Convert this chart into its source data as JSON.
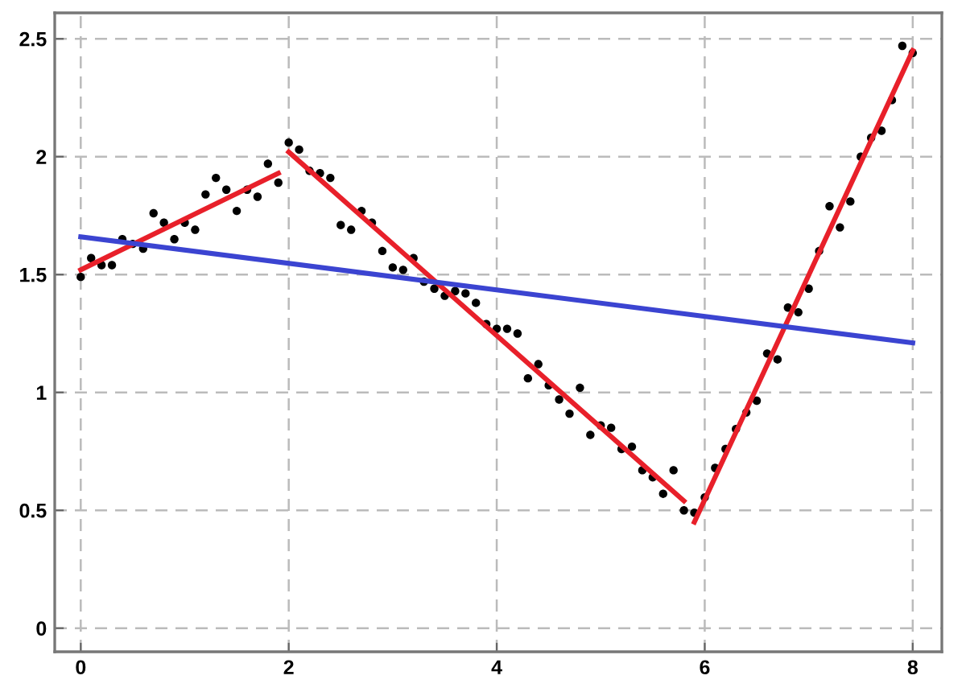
{
  "chart_data": {
    "type": "scatter",
    "xlim": [
      -0.25,
      8.28
    ],
    "ylim": [
      -0.1,
      2.61
    ],
    "xticks": [
      0,
      2,
      4,
      6,
      8
    ],
    "yticks": [
      0,
      0.5,
      1,
      1.5,
      2,
      2.5
    ],
    "grid": true,
    "marker": "circle",
    "series": [
      {
        "color": "#000000",
        "x": [
          0,
          0.1,
          0.2,
          0.3,
          0.4,
          0.5,
          0.6,
          0.7,
          0.8,
          0.9,
          1.0,
          1.1,
          1.2,
          1.3,
          1.4,
          1.5,
          1.6,
          1.7,
          1.8,
          1.9,
          2.0,
          2.1,
          2.2,
          2.3,
          2.4,
          2.5,
          2.6,
          2.7,
          2.8,
          2.9,
          3.0,
          3.1,
          3.2,
          3.3,
          3.4,
          3.5,
          3.6,
          3.7,
          3.8,
          3.9,
          4.0,
          4.1,
          4.2,
          4.3,
          4.4,
          4.5,
          4.6,
          4.7,
          4.8,
          4.9,
          5.0,
          5.1,
          5.2,
          5.3,
          5.4,
          5.5,
          5.6,
          5.7,
          5.8,
          5.9,
          6.0,
          6.1,
          6.2,
          6.3,
          6.4,
          6.5,
          6.6,
          6.7,
          6.8,
          6.9,
          7.0,
          7.1,
          7.2,
          7.3,
          7.4,
          7.5,
          7.6,
          7.7,
          7.8,
          7.9,
          8.0
        ],
        "values": [
          1.49,
          1.57,
          1.54,
          1.54,
          1.65,
          1.63,
          1.61,
          1.76,
          1.72,
          1.65,
          1.72,
          1.69,
          1.84,
          1.91,
          1.86,
          1.77,
          1.86,
          1.83,
          1.97,
          1.89,
          2.06,
          2.03,
          1.94,
          1.93,
          1.91,
          1.71,
          1.69,
          1.77,
          1.72,
          1.6,
          1.53,
          1.52,
          1.57,
          1.47,
          1.44,
          1.41,
          1.43,
          1.42,
          1.38,
          1.29,
          1.27,
          1.27,
          1.25,
          1.06,
          1.12,
          1.03,
          0.97,
          0.91,
          1.02,
          0.82,
          0.86,
          0.85,
          0.76,
          0.77,
          0.67,
          0.64,
          0.57,
          0.67,
          0.5,
          0.49,
          0.555,
          0.68,
          0.76,
          0.845,
          0.915,
          0.965,
          1.165,
          1.14,
          1.36,
          1.34,
          1.44,
          1.6,
          1.79,
          1.7,
          1.81,
          2.0,
          2.08,
          2.11,
          2.24,
          2.47,
          2.44
        ]
      },
      {
        "type": "line",
        "color": "#e8202a",
        "marker": "none",
        "x": [
          0,
          1.9
        ],
        "values": [
          1.52,
          1.93
        ]
      },
      {
        "type": "line",
        "color": "#e8202a",
        "marker": "none",
        "x": [
          2.0,
          5.8
        ],
        "values": [
          2.02,
          0.54
        ]
      },
      {
        "type": "line",
        "color": "#e8202a",
        "marker": "none",
        "x": [
          5.9,
          8.0
        ],
        "values": [
          0.45,
          2.45
        ]
      },
      {
        "type": "line",
        "color": "#3b44d1",
        "marker": "none",
        "x": [
          0,
          8
        ],
        "values": [
          1.66,
          1.21
        ]
      }
    ]
  }
}
